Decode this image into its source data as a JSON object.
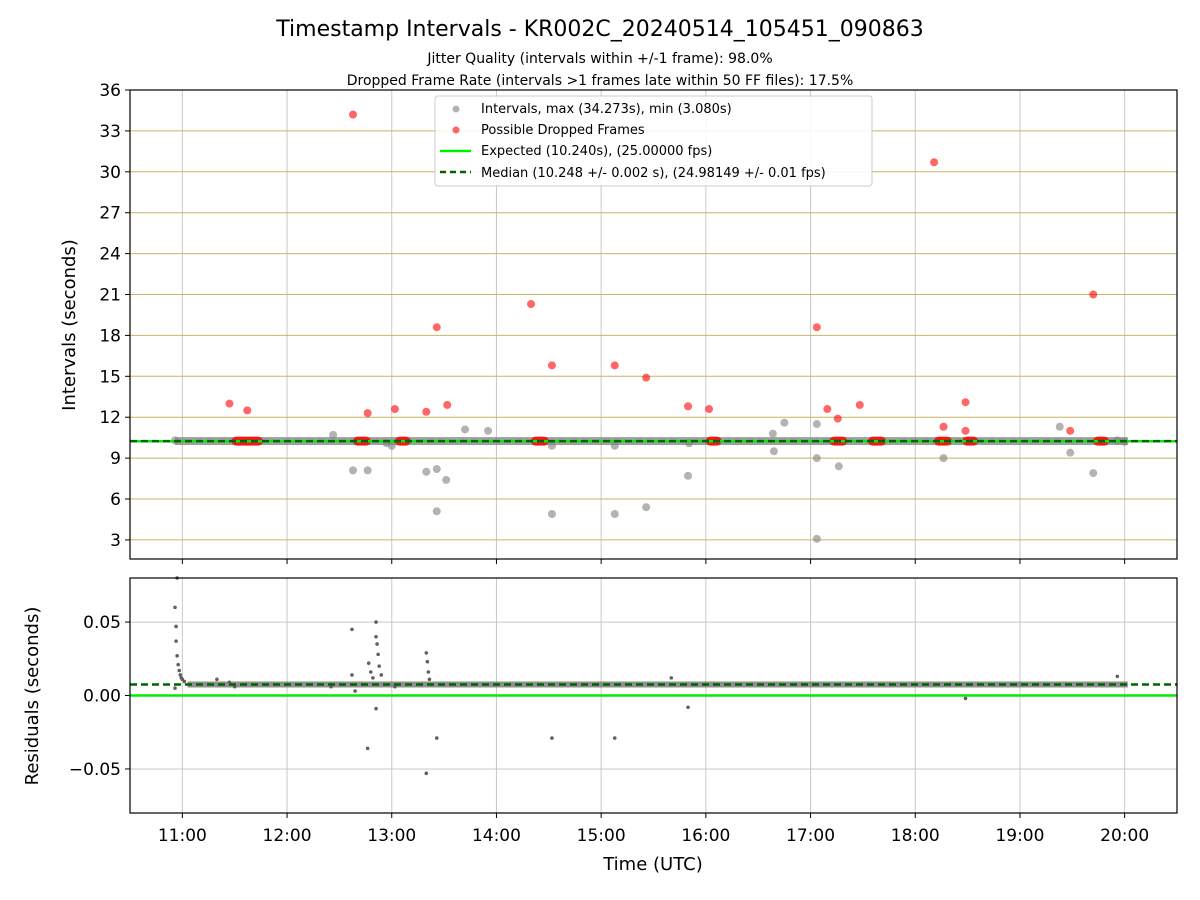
{
  "chart_data": [
    {
      "type": "scatter",
      "title": "Timestamp Intervals - KR002C_20240514_105451_090863",
      "subtitle_lines": [
        "Jitter Quality (intervals within +/-1 frame): 98.0%",
        "Dropped Frame Rate (intervals >1 frames late within 50 FF files): 17.5%"
      ],
      "ylabel": "Intervals (seconds)",
      "xlim": [
        10.5,
        20.5
      ],
      "ylim": [
        1.6,
        36
      ],
      "yticks": [
        3,
        6,
        9,
        12,
        15,
        18,
        21,
        24,
        27,
        30,
        33,
        36
      ],
      "grid": "on",
      "legend_position": "top-center",
      "legend": [
        "Intervals, max (34.273s), min (3.080s)",
        "Possible Dropped Frames",
        "Expected (10.240s), (25.00000 fps)",
        "Median (10.248 +/- 0.002 s), (24.98149 +/- 0.01 fps)"
      ],
      "expected_interval": 10.24,
      "median_interval": 10.248,
      "colors": {
        "intervals": "#808080",
        "dropped": "#ff0000",
        "expected": "#00ee00",
        "median": "#006400",
        "hgrid": "#c8b464"
      },
      "series": [
        {
          "name": "Intervals, max (34.273s), min (3.080s)",
          "points": [
            [
              10.93,
              10.3
            ],
            [
              12.44,
              10.7
            ],
            [
              12.63,
              8.1
            ],
            [
              12.77,
              8.1
            ],
            [
              12.95,
              10.1
            ],
            [
              13.0,
              9.9
            ],
            [
              13.33,
              8.0
            ],
            [
              13.43,
              8.2
            ],
            [
              13.43,
              5.1
            ],
            [
              13.52,
              7.4
            ],
            [
              13.7,
              11.1
            ],
            [
              13.92,
              11.0
            ],
            [
              14.53,
              9.9
            ],
            [
              14.53,
              4.9
            ],
            [
              15.13,
              9.9
            ],
            [
              15.13,
              4.9
            ],
            [
              15.43,
              5.4
            ],
            [
              15.83,
              7.7
            ],
            [
              15.84,
              10.1
            ],
            [
              16.64,
              10.8
            ],
            [
              16.65,
              9.5
            ],
            [
              16.75,
              11.6
            ],
            [
              17.06,
              11.5
            ],
            [
              17.06,
              9.0
            ],
            [
              17.06,
              3.08
            ],
            [
              17.27,
              8.4
            ],
            [
              18.27,
              9.0
            ],
            [
              19.38,
              11.3
            ],
            [
              19.48,
              9.4
            ],
            [
              19.7,
              7.9
            ],
            [
              19.93,
              10.3
            ],
            [
              20.0,
              10.2
            ]
          ],
          "dense_runs": [
            [
              10.93,
              20.03,
              10.25
            ]
          ]
        },
        {
          "name": "Possible Dropped Frames",
          "points": [
            [
              11.45,
              13.0
            ],
            [
              11.62,
              12.5
            ],
            [
              12.63,
              34.2
            ],
            [
              12.77,
              12.3
            ],
            [
              13.03,
              12.6
            ],
            [
              13.33,
              12.4
            ],
            [
              13.43,
              18.6
            ],
            [
              13.53,
              12.9
            ],
            [
              14.33,
              20.3
            ],
            [
              14.53,
              15.8
            ],
            [
              15.13,
              15.8
            ],
            [
              15.43,
              14.9
            ],
            [
              15.83,
              12.8
            ],
            [
              16.03,
              12.6
            ],
            [
              17.06,
              18.6
            ],
            [
              17.16,
              12.6
            ],
            [
              17.26,
              11.9
            ],
            [
              17.47,
              12.9
            ],
            [
              18.18,
              30.7
            ],
            [
              18.27,
              11.3
            ],
            [
              18.48,
              13.1
            ],
            [
              18.48,
              11.0
            ],
            [
              19.48,
              11.0
            ],
            [
              19.7,
              21.0
            ]
          ],
          "dense_runs": [
            [
              11.47,
              11.77,
              10.25
            ],
            [
              12.63,
              12.8,
              10.25
            ],
            [
              13.03,
              13.18,
              10.25
            ],
            [
              14.33,
              14.5,
              10.25
            ],
            [
              16.0,
              16.15,
              10.25
            ],
            [
              17.18,
              17.35,
              10.25
            ],
            [
              17.55,
              17.72,
              10.25
            ],
            [
              18.18,
              18.35,
              10.25
            ],
            [
              18.45,
              18.6,
              10.25
            ],
            [
              19.7,
              19.85,
              10.25
            ]
          ]
        }
      ]
    },
    {
      "type": "scatter",
      "ylabel": "Residuals (seconds)",
      "xlabel": "Time (UTC)",
      "xlim": [
        10.5,
        20.5
      ],
      "ylim": [
        -0.08,
        0.08
      ],
      "yticks": [
        -0.05,
        0.0,
        0.05
      ],
      "ytick_labels": [
        "−0.05",
        "0.00",
        "0.05"
      ],
      "xticks": [
        11,
        12,
        13,
        14,
        15,
        16,
        17,
        18,
        19,
        20
      ],
      "xtick_labels": [
        "11:00",
        "12:00",
        "13:00",
        "14:00",
        "15:00",
        "16:00",
        "17:00",
        "18:00",
        "19:00",
        "20:00"
      ],
      "grid": "on",
      "expected_residual": 0.0,
      "median_residual": 0.0075,
      "colors": {
        "points": "#606060",
        "expected": "#00ee00",
        "median": "#006400",
        "grid": "#c8c8c8"
      },
      "series": [
        {
          "name": "Residuals",
          "points": [
            [
              10.93,
              0.06
            ],
            [
              10.94,
              0.047
            ],
            [
              10.94,
              0.037
            ],
            [
              10.95,
              0.027
            ],
            [
              10.96,
              0.021
            ],
            [
              10.97,
              0.017
            ],
            [
              10.98,
              0.014
            ],
            [
              10.99,
              0.012
            ],
            [
              11.0,
              0.011
            ],
            [
              11.02,
              0.0095
            ],
            [
              10.93,
              0.005
            ],
            [
              10.95,
              0.08
            ],
            [
              11.33,
              0.011
            ],
            [
              11.45,
              0.009
            ],
            [
              11.5,
              0.006
            ],
            [
              12.42,
              0.006
            ],
            [
              12.62,
              0.045
            ],
            [
              12.62,
              0.014
            ],
            [
              12.65,
              0.003
            ],
            [
              12.77,
              -0.036
            ],
            [
              12.78,
              0.022
            ],
            [
              12.8,
              0.016
            ],
            [
              12.82,
              0.012
            ],
            [
              12.85,
              0.05
            ],
            [
              12.85,
              0.04
            ],
            [
              12.86,
              0.035
            ],
            [
              12.87,
              0.028
            ],
            [
              12.88,
              0.02
            ],
            [
              12.9,
              0.014
            ],
            [
              12.85,
              -0.009
            ],
            [
              13.03,
              0.006
            ],
            [
              13.33,
              0.029
            ],
            [
              13.34,
              0.023
            ],
            [
              13.35,
              0.016
            ],
            [
              13.36,
              0.011
            ],
            [
              13.33,
              -0.053
            ],
            [
              13.43,
              -0.029
            ],
            [
              14.53,
              -0.029
            ],
            [
              15.13,
              -0.029
            ],
            [
              15.67,
              0.012
            ],
            [
              15.83,
              -0.008
            ],
            [
              18.48,
              -0.002
            ],
            [
              19.93,
              0.013
            ]
          ],
          "dense_runs": [
            [
              11.05,
              20.03,
              0.0075
            ]
          ]
        }
      ]
    }
  ]
}
